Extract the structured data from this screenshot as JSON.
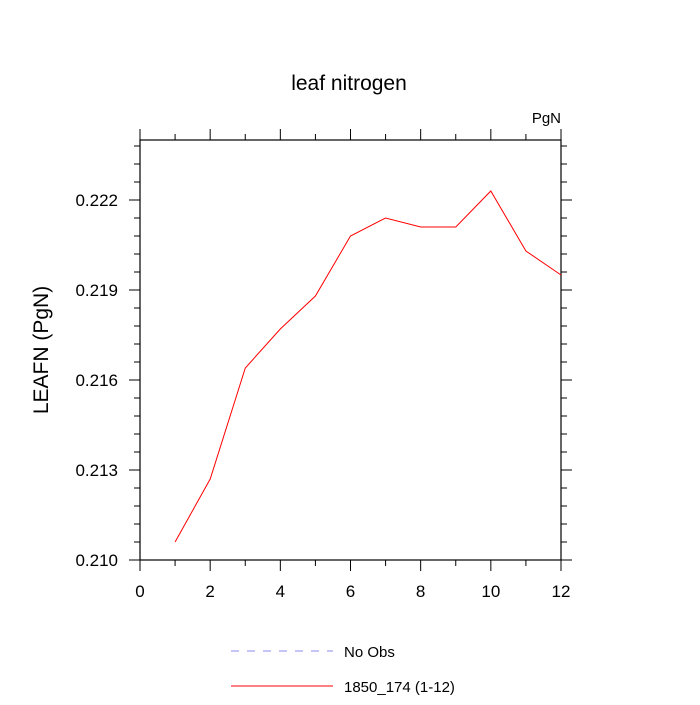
{
  "chart_data": {
    "type": "line",
    "title": "leaf nitrogen",
    "units_label": "PgN",
    "ylabel": "LEAFN  (PgN)",
    "xlabel": "",
    "xlim": [
      0,
      12
    ],
    "ylim": [
      0.21,
      0.224
    ],
    "x_ticks": [
      0,
      2,
      4,
      6,
      8,
      10,
      12
    ],
    "x_tick_labels": [
      "0",
      "2",
      "4",
      "6",
      "8",
      "10",
      "12"
    ],
    "y_ticks": [
      0.21,
      0.213,
      0.216,
      0.219,
      0.222
    ],
    "y_tick_labels": [
      "0.210",
      "0.213",
      "0.216",
      "0.219",
      "0.222"
    ],
    "grid": false,
    "legend_position": "bottom",
    "series": [
      {
        "name": "1850_174 (1-12)",
        "color": "#ff0000",
        "style": "solid",
        "x": [
          1,
          2,
          3,
          4,
          5,
          6,
          7,
          8,
          9,
          10,
          11,
          12
        ],
        "y": [
          0.2106,
          0.2127,
          0.2164,
          0.2177,
          0.2188,
          0.2208,
          0.2214,
          0.2211,
          0.2211,
          0.2223,
          0.2203,
          0.2195
        ]
      }
    ],
    "legend": [
      {
        "label": "No Obs",
        "color": "#8888ee",
        "style": "dashed"
      },
      {
        "label": "1850_174 (1-12)",
        "color": "#ff0000",
        "style": "solid"
      }
    ]
  }
}
